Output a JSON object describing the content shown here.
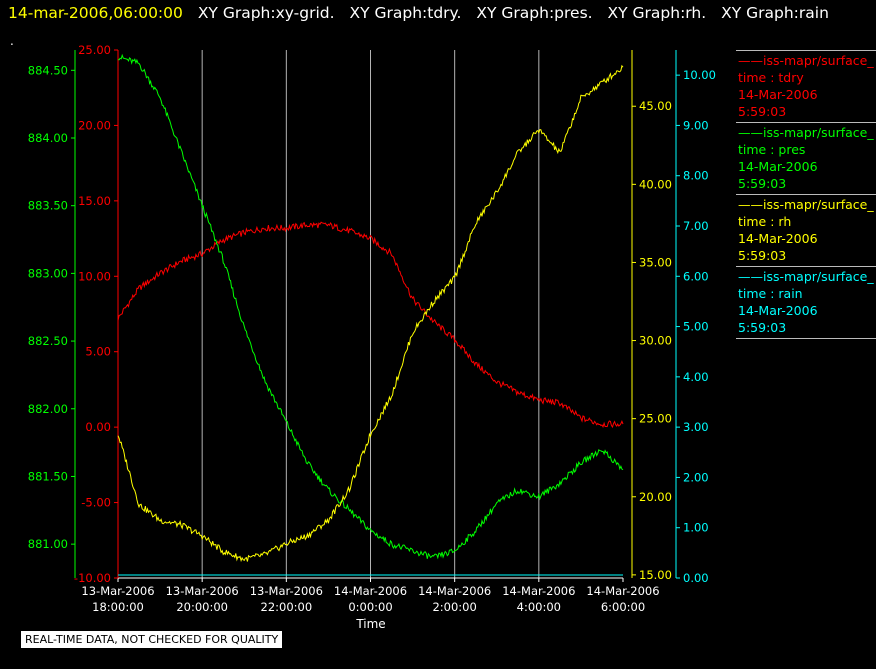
{
  "header": {
    "timestamp": "14-mar-2006,06:00:00",
    "graphs": [
      "XY Graph:xy-grid.",
      "XY Graph:tdry.",
      "XY Graph:pres.",
      "XY Graph:rh.",
      "XY Graph:rain"
    ]
  },
  "dot": ".",
  "footer": "REAL-TIME DATA, NOT CHECKED FOR QUALITY",
  "colors": {
    "tdry": "#ff0000",
    "pres": "#00ff00",
    "rh": "#ffff00",
    "rain": "#00ffff",
    "grid": "#b4b4b4",
    "background": "#000000"
  },
  "legend": [
    {
      "source": "iss-mapr/surface_",
      "field": "time : tdry",
      "date": "14-Mar-2006",
      "time": "5:59:03",
      "color": "#ff0000"
    },
    {
      "source": "iss-mapr/surface_",
      "field": "time : pres",
      "date": "14-Mar-2006",
      "time": "5:59:03",
      "color": "#00ff00"
    },
    {
      "source": "iss-mapr/surface_",
      "field": "time : rh",
      "date": "14-Mar-2006",
      "time": "5:59:03",
      "color": "#ffff00"
    },
    {
      "source": "iss-mapr/surface_",
      "field": "time : rain",
      "date": "14-Mar-2006",
      "time": "5:59:03",
      "color": "#00ffff"
    }
  ],
  "chart_data": {
    "type": "line",
    "xlabel": "Time",
    "xlim": [
      "2006-03-13T18:00",
      "2006-03-14T06:00"
    ],
    "x_ticks": [
      {
        "date": "13-Mar-2006",
        "time": "18:00:00"
      },
      {
        "date": "13-Mar-2006",
        "time": "20:00:00"
      },
      {
        "date": "13-Mar-2006",
        "time": "22:00:00"
      },
      {
        "date": "14-Mar-2006",
        "time": "0:00:00"
      },
      {
        "date": "14-Mar-2006",
        "time": "2:00:00"
      },
      {
        "date": "14-Mar-2006",
        "time": "4:00:00"
      },
      {
        "date": "14-Mar-2006",
        "time": "6:00:00"
      }
    ],
    "grid": "vertical",
    "axes": {
      "tdry": {
        "side": "left",
        "ylim": [
          -10,
          25
        ],
        "ticks": [
          "25.00",
          "20.00",
          "15.00",
          "10.00",
          "5.00",
          "0.00",
          "-5.00",
          "-10.00"
        ]
      },
      "pres": {
        "side": "left",
        "ylim": [
          880.75,
          884.65
        ],
        "ticks": [
          "884.50",
          "884.00",
          "883.50",
          "883.00",
          "882.50",
          "882.00",
          "881.50",
          "881.00"
        ]
      },
      "rh": {
        "side": "right",
        "ylim": [
          14.8,
          48.6
        ],
        "ticks": [
          "45.00",
          "40.00",
          "35.00",
          "30.00",
          "25.00",
          "20.00",
          "15.00"
        ]
      },
      "rain": {
        "side": "right",
        "ylim": [
          0,
          10.5
        ],
        "ticks": [
          "10.00",
          "9.00",
          "8.00",
          "7.00",
          "6.00",
          "5.00",
          "4.00",
          "3.00",
          "2.00",
          "1.00",
          "0.00"
        ]
      }
    },
    "series": [
      {
        "name": "time : tdry",
        "axis": "tdry",
        "x": [
          "2006-03-13T18:00",
          "2006-03-13T18:30",
          "2006-03-13T19:00",
          "2006-03-13T19:30",
          "2006-03-13T20:00",
          "2006-03-13T20:30",
          "2006-03-13T21:00",
          "2006-03-13T21:30",
          "2006-03-13T22:00",
          "2006-03-13T22:30",
          "2006-03-13T23:00",
          "2006-03-13T23:30",
          "2006-03-14T00:00",
          "2006-03-14T00:30",
          "2006-03-14T01:00",
          "2006-03-14T01:30",
          "2006-03-14T02:00",
          "2006-03-14T02:30",
          "2006-03-14T03:00",
          "2006-03-14T03:30",
          "2006-03-14T04:00",
          "2006-03-14T04:30",
          "2006-03-14T05:00",
          "2006-03-14T05:30",
          "2006-03-14T06:00"
        ],
        "values": [
          7.2,
          9.2,
          10.2,
          11.0,
          11.5,
          12.4,
          12.9,
          13.2,
          13.2,
          13.4,
          13.4,
          13.0,
          12.5,
          11.5,
          8.5,
          7.0,
          5.8,
          4.2,
          3.0,
          2.3,
          1.8,
          1.6,
          0.6,
          0.2,
          0.2
        ]
      },
      {
        "name": "time : pres",
        "axis": "pres",
        "x": [
          "2006-03-13T18:00",
          "2006-03-13T18:30",
          "2006-03-13T19:00",
          "2006-03-13T19:30",
          "2006-03-13T20:00",
          "2006-03-13T20:30",
          "2006-03-13T21:00",
          "2006-03-13T21:30",
          "2006-03-13T22:00",
          "2006-03-13T22:30",
          "2006-03-13T23:00",
          "2006-03-13T23:30",
          "2006-03-14T00:00",
          "2006-03-14T00:30",
          "2006-03-14T01:00",
          "2006-03-14T01:30",
          "2006-03-14T02:00",
          "2006-03-14T02:30",
          "2006-03-14T03:00",
          "2006-03-14T03:30",
          "2006-03-14T04:00",
          "2006-03-14T04:30",
          "2006-03-14T05:00",
          "2006-03-14T05:30",
          "2006-03-14T06:00"
        ],
        "values": [
          884.6,
          884.55,
          884.3,
          883.9,
          883.5,
          883.1,
          882.6,
          882.2,
          881.9,
          881.6,
          881.4,
          881.25,
          881.1,
          881.0,
          880.95,
          880.9,
          880.95,
          881.1,
          881.3,
          881.4,
          881.35,
          881.45,
          881.6,
          881.7,
          881.55
        ]
      },
      {
        "name": "time : rh",
        "axis": "rh",
        "x": [
          "2006-03-13T18:00",
          "2006-03-13T18:30",
          "2006-03-13T19:00",
          "2006-03-13T19:30",
          "2006-03-13T20:00",
          "2006-03-13T20:30",
          "2006-03-13T21:00",
          "2006-03-13T21:30",
          "2006-03-13T22:00",
          "2006-03-13T22:30",
          "2006-03-13T23:00",
          "2006-03-13T23:30",
          "2006-03-14T00:00",
          "2006-03-14T00:30",
          "2006-03-14T01:00",
          "2006-03-14T01:30",
          "2006-03-14T02:00",
          "2006-03-14T02:30",
          "2006-03-14T03:00",
          "2006-03-14T03:30",
          "2006-03-14T04:00",
          "2006-03-14T04:30",
          "2006-03-14T05:00",
          "2006-03-14T05:30",
          "2006-03-14T06:00"
        ],
        "values": [
          24.0,
          19.5,
          18.5,
          18.2,
          17.5,
          16.5,
          16.0,
          16.3,
          17.0,
          17.5,
          18.5,
          20.5,
          24.0,
          26.5,
          30.5,
          32.5,
          34.0,
          37.5,
          39.5,
          42.0,
          43.5,
          42.0,
          45.5,
          46.5,
          47.5
        ]
      },
      {
        "name": "time : rain",
        "axis": "rain",
        "x": [
          "2006-03-13T18:00",
          "2006-03-14T06:00"
        ],
        "values": [
          0.0,
          0.0
        ]
      }
    ]
  }
}
